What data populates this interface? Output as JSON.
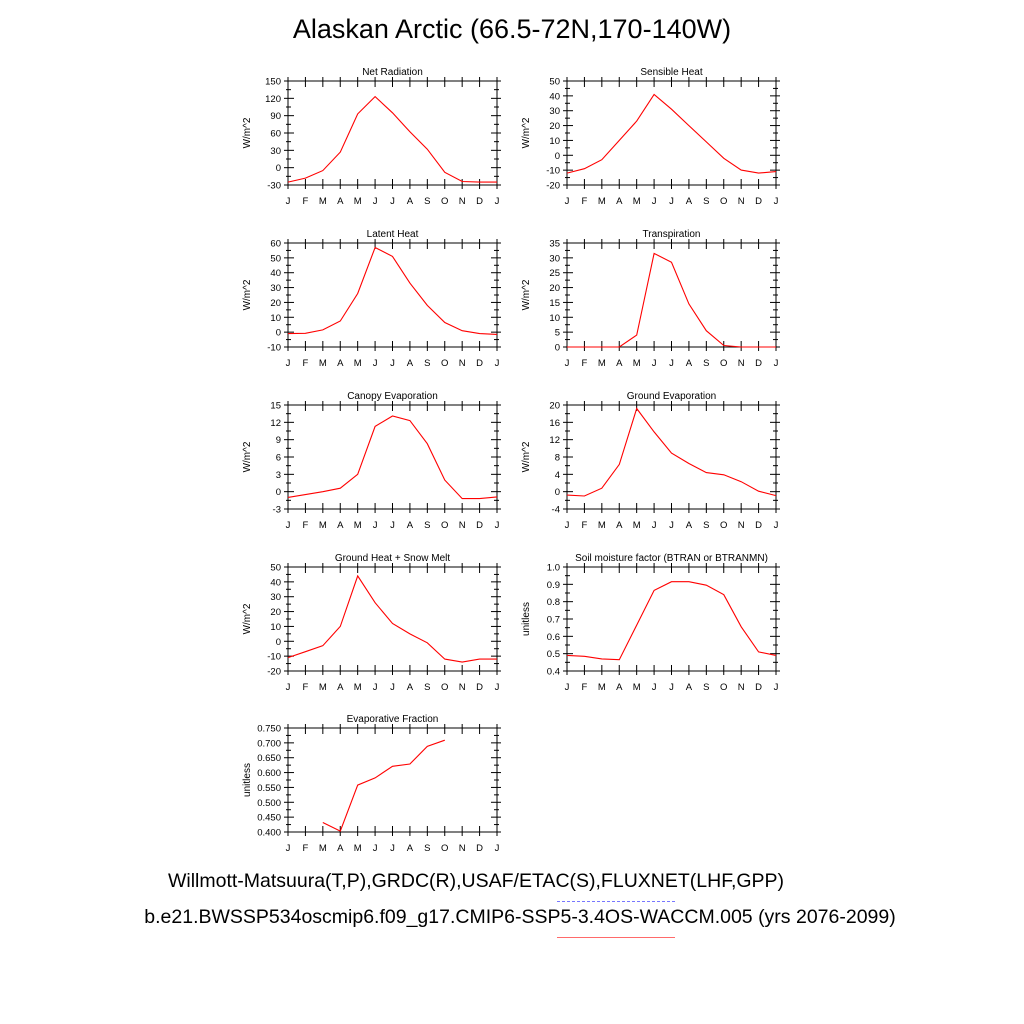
{
  "page": {
    "title": "Alaskan Arctic (66.5-72N,170-140W)",
    "footer_obs": "Willmott-Matsuura(T,P),GRDC(R),USAF/ETAC(S),FLUXNET(LHF,GPP)",
    "footer_model": "b.e21.BWSSP534oscmip6.f09_g17.CMIP6-SSP5-3.4OS-WACCM.005 (yrs 2076-2099)",
    "obs_line_color": "#7777ff",
    "model_line_color": "#ff0000"
  },
  "chart_data": [
    {
      "type": "line",
      "title": "Net Radiation",
      "ylabel": "W/m^2",
      "categories": [
        "J",
        "F",
        "M",
        "A",
        "M",
        "J",
        "J",
        "A",
        "S",
        "O",
        "N",
        "D",
        "J"
      ],
      "yticks": [
        "150",
        "120",
        "90",
        "60",
        "30",
        "0",
        "-30"
      ],
      "ylim": [
        -30,
        150
      ],
      "values": [
        -25,
        -18,
        -5,
        27,
        93,
        123,
        95,
        62,
        32,
        -8,
        -24,
        -25,
        -25
      ]
    },
    {
      "type": "line",
      "title": "Sensible Heat",
      "ylabel": "W/m^2",
      "categories": [
        "J",
        "F",
        "M",
        "A",
        "M",
        "J",
        "J",
        "A",
        "S",
        "O",
        "N",
        "D",
        "J"
      ],
      "yticks": [
        "50",
        "40",
        "30",
        "20",
        "10",
        "0",
        "-10",
        "-20"
      ],
      "ylim": [
        -20,
        50
      ],
      "values": [
        -12,
        -9,
        -3,
        10,
        23,
        41,
        31,
        20,
        9,
        -2,
        -10,
        -12,
        -11
      ]
    },
    {
      "type": "line",
      "title": "Latent Heat",
      "ylabel": "W/m^2",
      "categories": [
        "J",
        "F",
        "M",
        "A",
        "M",
        "J",
        "J",
        "A",
        "S",
        "O",
        "N",
        "D",
        "J"
      ],
      "yticks": [
        "60",
        "50",
        "40",
        "30",
        "20",
        "10",
        "0",
        "-10"
      ],
      "ylim": [
        -10,
        60
      ],
      "values": [
        -1,
        -0.8,
        1.5,
        7.5,
        26,
        57,
        51,
        33,
        18,
        6.5,
        1,
        -1,
        -1.5
      ]
    },
    {
      "type": "line",
      "title": "Transpiration",
      "ylabel": "W/m^2",
      "categories": [
        "J",
        "F",
        "M",
        "A",
        "M",
        "J",
        "J",
        "A",
        "S",
        "O",
        "N",
        "D",
        "J"
      ],
      "yticks": [
        "35",
        "30",
        "25",
        "20",
        "15",
        "10",
        "5",
        "0"
      ],
      "ylim": [
        0,
        35
      ],
      "values": [
        0,
        0,
        0,
        0,
        4,
        31.5,
        28.5,
        14.5,
        5.5,
        0.5,
        0,
        0,
        0
      ]
    },
    {
      "type": "line",
      "title": "Canopy Evaporation",
      "ylabel": "W/m^2",
      "categories": [
        "J",
        "F",
        "M",
        "A",
        "M",
        "J",
        "J",
        "A",
        "S",
        "O",
        "N",
        "D",
        "J"
      ],
      "yticks": [
        "15",
        "12",
        "9",
        "6",
        "3",
        "0",
        "-3"
      ],
      "ylim": [
        -3,
        15
      ],
      "values": [
        -1,
        -0.5,
        0,
        0.6,
        3,
        11.3,
        13.1,
        12.3,
        8.3,
        2,
        -1.2,
        -1.2,
        -0.9
      ]
    },
    {
      "type": "line",
      "title": "Ground Evaporation",
      "ylabel": "W/m^2",
      "categories": [
        "J",
        "F",
        "M",
        "A",
        "M",
        "J",
        "J",
        "A",
        "S",
        "O",
        "N",
        "D",
        "J"
      ],
      "yticks": [
        "20",
        "16",
        "12",
        "8",
        "4",
        "0",
        "-4"
      ],
      "ylim": [
        -4,
        20
      ],
      "values": [
        -0.8,
        -1,
        0.8,
        6.3,
        19.2,
        13.8,
        8.9,
        6.5,
        4.4,
        3.9,
        2.3,
        0.1,
        -0.9
      ]
    },
    {
      "type": "line",
      "title": "Ground Heat + Snow Melt",
      "ylabel": "W/m^2",
      "categories": [
        "J",
        "F",
        "M",
        "A",
        "M",
        "J",
        "J",
        "A",
        "S",
        "O",
        "N",
        "D",
        "J"
      ],
      "yticks": [
        "50",
        "40",
        "30",
        "20",
        "10",
        "0",
        "-10",
        "-20"
      ],
      "ylim": [
        -20,
        50
      ],
      "values": [
        -11,
        -7,
        -3,
        10,
        44,
        26,
        12,
        5,
        -1,
        -12,
        -14,
        -12,
        -12
      ]
    },
    {
      "type": "line",
      "title": "Soil moisture factor (BTRAN or BTRANMN)",
      "ylabel": "unitless",
      "categories": [
        "J",
        "F",
        "M",
        "A",
        "M",
        "J",
        "J",
        "A",
        "S",
        "O",
        "N",
        "D",
        "J"
      ],
      "yticks": [
        "1.0",
        "0.9",
        "0.8",
        "0.7",
        "0.6",
        "0.5",
        "0.4"
      ],
      "ylim": [
        0.4,
        1.0
      ],
      "values": [
        0.49,
        0.485,
        0.47,
        0.465,
        0.665,
        0.865,
        0.915,
        0.915,
        0.895,
        0.84,
        0.655,
        0.51,
        0.49
      ]
    },
    {
      "type": "line",
      "title": "Evaporative Fraction",
      "ylabel": "unitless",
      "categories": [
        "J",
        "F",
        "M",
        "A",
        "M",
        "J",
        "J",
        "A",
        "S",
        "O",
        "N",
        "D",
        "J"
      ],
      "yticks": [
        "0.750",
        "0.700",
        "0.650",
        "0.600",
        "0.550",
        "0.500",
        "0.450",
        "0.400"
      ],
      "ylim": [
        0.4,
        0.75
      ],
      "values": [
        null,
        null,
        0.432,
        0.403,
        0.558,
        0.582,
        0.621,
        0.629,
        0.688,
        0.709,
        null,
        null,
        null
      ]
    }
  ]
}
